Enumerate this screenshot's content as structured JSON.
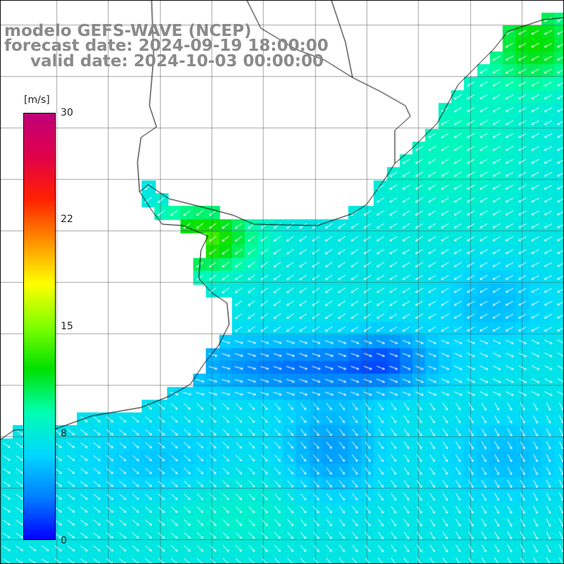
{
  "title": {
    "line1": "modelo GEFS-WAVE (NCEP)",
    "line2": "forecast date: 2024-09-19 18:00:00",
    "line3": "valid date: 2024-10-03 00:00:00"
  },
  "colorbar": {
    "unit": "[m/s]",
    "min": 0,
    "max": 30,
    "ticks": [
      "30",
      "22",
      "15",
      "8",
      "0"
    ],
    "colors": [
      "#0000ff",
      "#0080ff",
      "#00d8ff",
      "#00ffb0",
      "#00e000",
      "#80ff00",
      "#ffff00",
      "#ff9000",
      "#ff2000",
      "#e0004a",
      "#c0007a"
    ]
  },
  "map": {
    "variable": "wind speed",
    "units": "m/s"
  }
}
